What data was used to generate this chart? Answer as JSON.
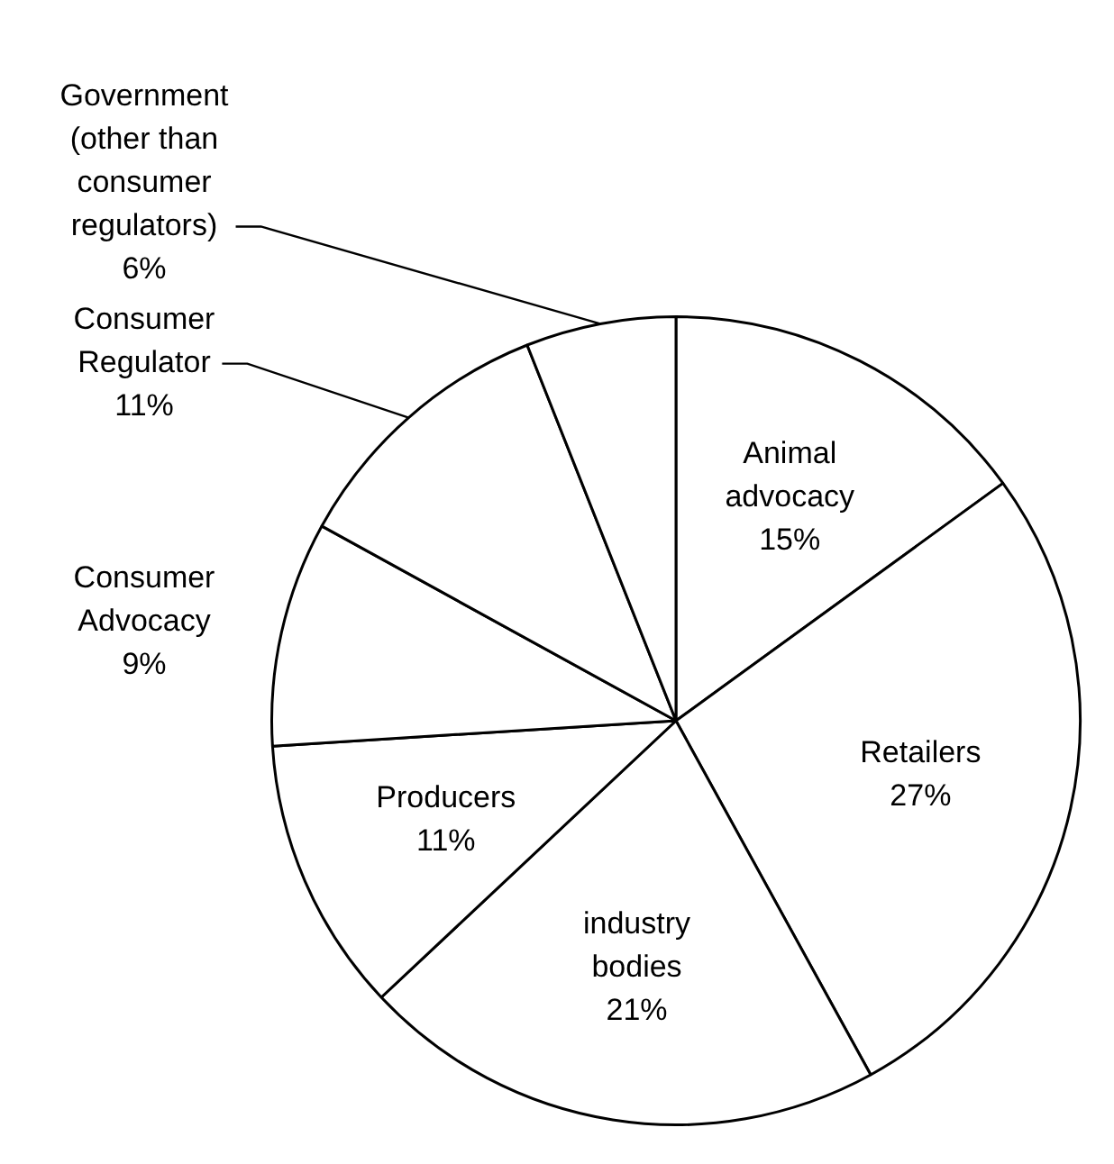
{
  "chart_data": {
    "type": "pie",
    "categories": [
      "Animal advocacy",
      "Retailers",
      "industry bodies",
      "Producers",
      "Consumer Advocacy",
      "Consumer Regulator",
      "Government (other than consumer regulators)"
    ],
    "values": [
      15,
      27,
      21,
      11,
      9,
      11,
      6
    ],
    "colors": [
      "#ffffff",
      "#ffffff",
      "#ffffff",
      "#ffffff",
      "#ffffff",
      "#ffffff",
      "#ffffff"
    ],
    "value_labels": [
      "15%",
      "27%",
      "21%",
      "11%",
      "9%",
      "11%",
      "6%"
    ],
    "legend": false
  }
}
